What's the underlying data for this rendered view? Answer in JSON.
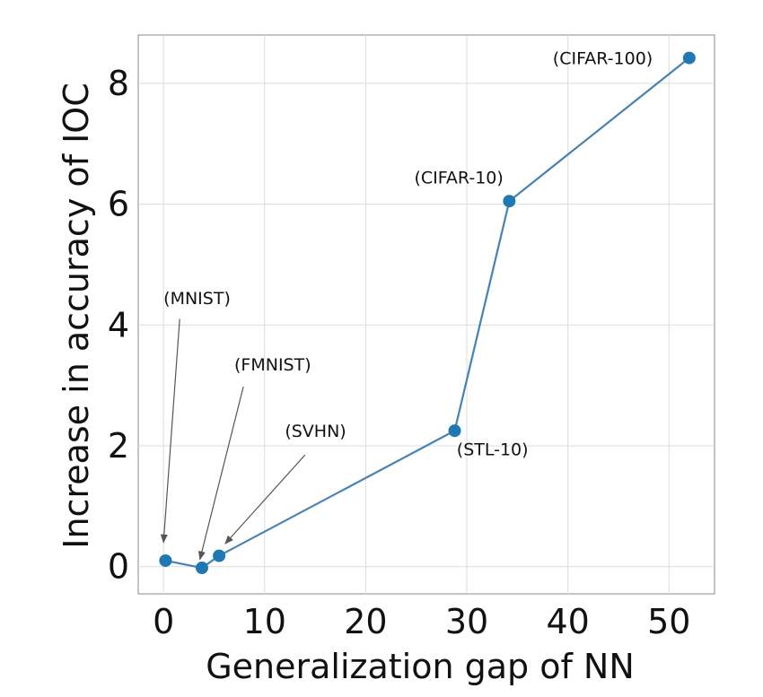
{
  "chart_data": {
    "type": "line",
    "xlabel": "Generalization gap of NN",
    "ylabel": "Increase in accuracy of IOC",
    "xlim": [
      -2.5,
      54.5
    ],
    "ylim": [
      -0.45,
      8.8
    ],
    "x_ticks": [
      0,
      10,
      20,
      30,
      40,
      50
    ],
    "y_ticks": [
      0,
      2,
      4,
      6,
      8
    ],
    "grid": true,
    "legend": "none",
    "series_color": "#4682b4",
    "marker_color": "#1f77b4",
    "points": [
      {
        "x": 0.2,
        "y": 0.1
      },
      {
        "x": 3.8,
        "y": -0.02
      },
      {
        "x": 5.5,
        "y": 0.18
      },
      {
        "x": 28.8,
        "y": 2.25
      },
      {
        "x": 34.2,
        "y": 6.05
      },
      {
        "x": 52.0,
        "y": 8.42
      }
    ],
    "annotations": [
      {
        "text": "(MNIST)",
        "text_x": 0.0,
        "text_y": 4.45,
        "arrow": true,
        "arrow_from": [
          1.6,
          4.1
        ],
        "arrow_to": [
          0.0,
          0.4
        ]
      },
      {
        "text": "(FMNIST)",
        "text_x": 7.0,
        "text_y": 3.35,
        "arrow": true,
        "arrow_from": [
          7.9,
          2.98
        ],
        "arrow_to": [
          3.6,
          0.12
        ]
      },
      {
        "text": "(SVHN)",
        "text_x": 12.0,
        "text_y": 2.25,
        "arrow": true,
        "arrow_from": [
          14.0,
          1.85
        ],
        "arrow_to": [
          6.1,
          0.38
        ]
      },
      {
        "text": "(STL-10)",
        "text_x": 29.0,
        "text_y": 1.95,
        "arrow": false
      },
      {
        "text": "(CIFAR-10)",
        "text_x": 24.8,
        "text_y": 6.45,
        "arrow": false
      },
      {
        "text": "(CIFAR-100)",
        "text_x": 38.5,
        "text_y": 8.42,
        "arrow": false
      }
    ]
  }
}
